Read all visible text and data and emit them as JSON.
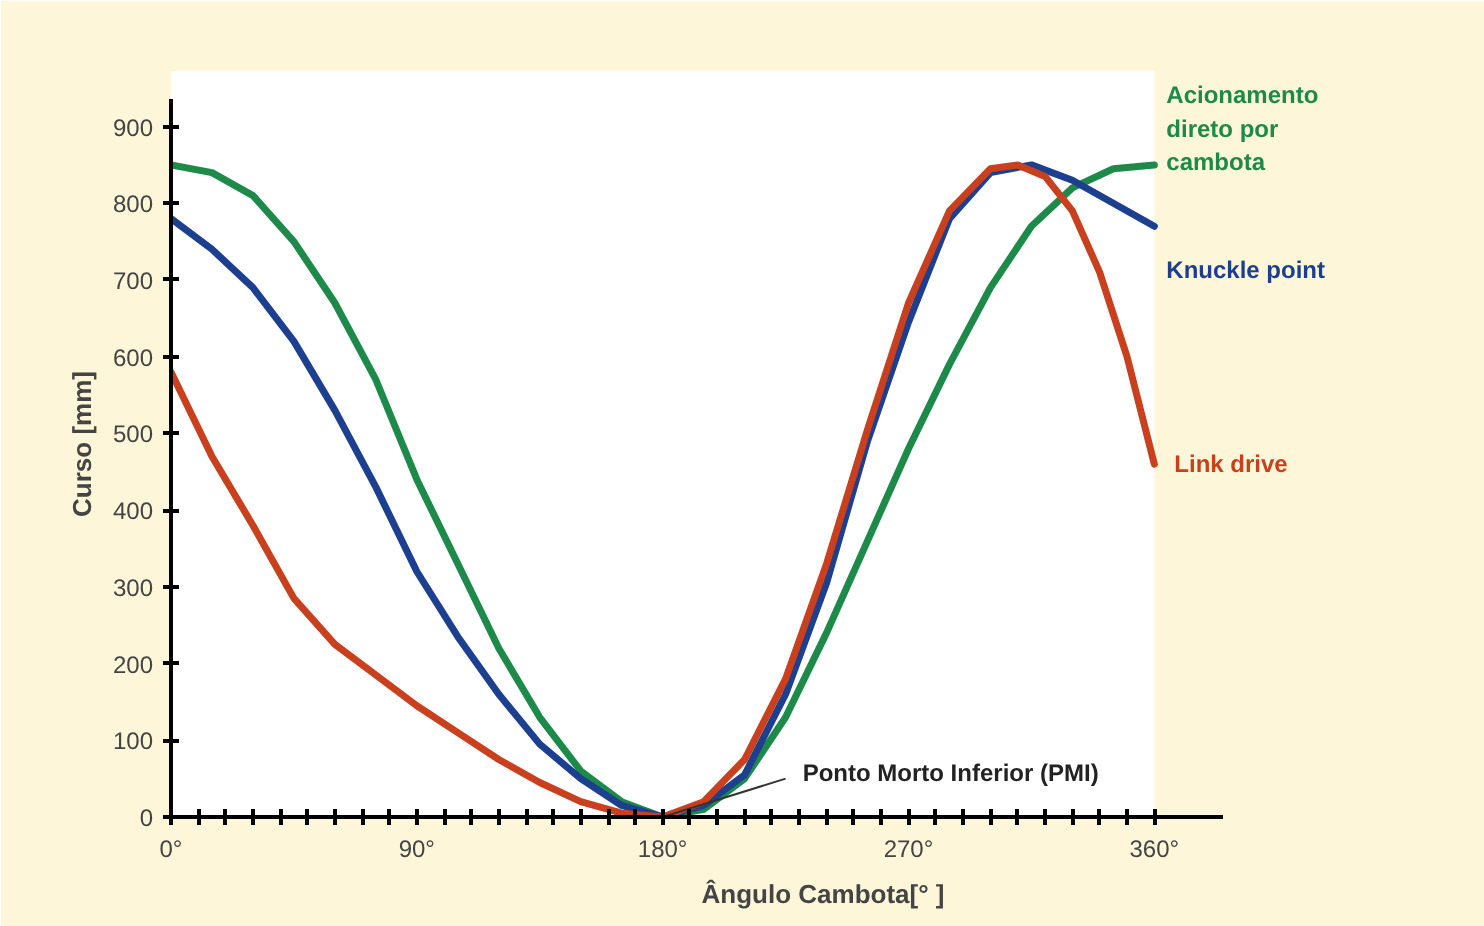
{
  "chart_data": {
    "type": "line",
    "xlabel": "Ângulo Cambota[° ]",
    "ylabel": "Curso [mm]",
    "xlim": [
      0,
      385
    ],
    "ylim": [
      0,
      935
    ],
    "xticks": [
      {
        "value": 0,
        "label": "0°"
      },
      {
        "value": 10,
        "label": null
      },
      {
        "value": 20,
        "label": null
      },
      {
        "value": 30,
        "label": null
      },
      {
        "value": 40,
        "label": null
      },
      {
        "value": 50,
        "label": null
      },
      {
        "value": 60,
        "label": null
      },
      {
        "value": 70,
        "label": null
      },
      {
        "value": 80,
        "label": null
      },
      {
        "value": 90,
        "label": "90°"
      },
      {
        "value": 100,
        "label": null
      },
      {
        "value": 110,
        "label": null
      },
      {
        "value": 120,
        "label": null
      },
      {
        "value": 130,
        "label": null
      },
      {
        "value": 140,
        "label": null
      },
      {
        "value": 150,
        "label": null
      },
      {
        "value": 160,
        "label": null
      },
      {
        "value": 170,
        "label": null
      },
      {
        "value": 180,
        "label": "180°"
      },
      {
        "value": 190,
        "label": null
      },
      {
        "value": 200,
        "label": null
      },
      {
        "value": 210,
        "label": null
      },
      {
        "value": 220,
        "label": null
      },
      {
        "value": 230,
        "label": null
      },
      {
        "value": 240,
        "label": null
      },
      {
        "value": 250,
        "label": null
      },
      {
        "value": 260,
        "label": null
      },
      {
        "value": 270,
        "label": "270°"
      },
      {
        "value": 280,
        "label": null
      },
      {
        "value": 290,
        "label": null
      },
      {
        "value": 300,
        "label": null
      },
      {
        "value": 310,
        "label": null
      },
      {
        "value": 320,
        "label": null
      },
      {
        "value": 330,
        "label": null
      },
      {
        "value": 340,
        "label": null
      },
      {
        "value": 350,
        "label": null
      },
      {
        "value": 360,
        "label": "360°"
      }
    ],
    "yticks": [
      0,
      100,
      200,
      300,
      400,
      500,
      600,
      700,
      800,
      900
    ],
    "grid": false,
    "line_style": "solid",
    "series": [
      {
        "name": "Acionamento direto por cambota",
        "color": "#1e8a4a",
        "x": [
          0,
          15,
          30,
          45,
          60,
          75,
          90,
          105,
          120,
          135,
          150,
          165,
          180,
          195,
          210,
          225,
          240,
          255,
          270,
          285,
          300,
          315,
          330,
          345,
          360
        ],
        "values": [
          850,
          840,
          810,
          750,
          670,
          570,
          440,
          330,
          220,
          130,
          60,
          20,
          0,
          10,
          50,
          130,
          240,
          360,
          480,
          590,
          690,
          770,
          820,
          845,
          850
        ]
      },
      {
        "name": "Knuckle point",
        "color": "#1c3f8f",
        "x": [
          0,
          15,
          30,
          45,
          60,
          75,
          90,
          105,
          120,
          135,
          150,
          165,
          180,
          195,
          210,
          225,
          240,
          255,
          270,
          285,
          300,
          315,
          330,
          345,
          360
        ],
        "values": [
          780,
          740,
          690,
          620,
          530,
          430,
          320,
          235,
          160,
          95,
          50,
          15,
          0,
          15,
          55,
          160,
          305,
          490,
          645,
          780,
          840,
          850,
          830,
          800,
          770
        ]
      },
      {
        "name": "Link drive",
        "color": "#c8401e",
        "x": [
          0,
          15,
          30,
          45,
          60,
          75,
          90,
          105,
          120,
          135,
          150,
          165,
          180,
          195,
          210,
          225,
          240,
          255,
          270,
          285,
          300,
          310,
          320,
          330,
          340,
          350,
          360
        ],
        "values": [
          580,
          470,
          380,
          285,
          225,
          185,
          145,
          110,
          75,
          45,
          20,
          5,
          0,
          20,
          75,
          180,
          330,
          505,
          670,
          790,
          845,
          850,
          835,
          790,
          710,
          600,
          460
        ]
      }
    ],
    "annotations": [
      {
        "text": "Ponto Morto Inferior (PMI)",
        "x": 180,
        "y": 0
      }
    ]
  }
}
